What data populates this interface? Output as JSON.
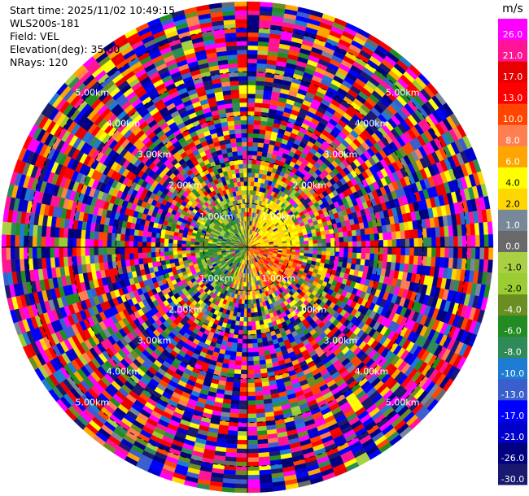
{
  "header": {
    "start_time": "Start time: 2025/11/02 10:49:15",
    "instrument": "WLS200s-181",
    "field": "Field: VEL",
    "elevation": "Elevation(deg): 35.00",
    "nrays": "NRays: 120"
  },
  "chart_data": {
    "type": "heatmap",
    "projection": "polar-ppi",
    "field": "VEL",
    "units": "m/s",
    "n_rays": 120,
    "elevation_deg": 35.0,
    "range_rings_km": [
      1.0,
      2.0,
      3.0,
      4.0,
      5.0
    ],
    "ring_labels": {
      "1": "1.00km",
      "2": "2.00km",
      "3": "3.00km",
      "4": "4.00km",
      "5": "5.00km"
    },
    "ring_label_azimuths_deg": [
      45,
      135,
      225,
      315
    ],
    "max_range_km": 5.6,
    "colorbar": {
      "unit_label": "m/s",
      "boundaries": [
        -30.0,
        -26.0,
        -21.0,
        -17.0,
        -13.0,
        -10.0,
        -8.0,
        -6.0,
        -4.0,
        -2.0,
        -1.0,
        0.0,
        1.0,
        2.0,
        4.0,
        6.0,
        8.0,
        10.0,
        13.0,
        17.0,
        21.0,
        26.0,
        30.0
      ],
      "tick_labels": [
        "-30.0",
        "-26.0",
        "-21.0",
        "-17.0",
        "-13.0",
        "-10.0",
        "-8.0",
        "-6.0",
        "-4.0",
        "-2.0",
        "-1.0",
        "0.0",
        "1.0",
        "2.0",
        "4.0",
        "6.0",
        "8.0",
        "10.0",
        "13.0",
        "17.0",
        "21.0",
        "26.0"
      ],
      "colors": [
        "#191970",
        "#000080",
        "#0000cd",
        "#0000ff",
        "#3a5fcd",
        "#1e7bd2",
        "#2e8b57",
        "#228b22",
        "#6b8e23",
        "#9acd32",
        "#a9d042",
        "#696969",
        "#778899",
        "#ffd700",
        "#ffff00",
        "#ffa500",
        "#ff7f50",
        "#ff4500",
        "#ff0000",
        "#e60000",
        "#ff1493",
        "#ff00ff"
      ]
    },
    "pattern_description_values": {
      "near_range_east_dominant": "0.0 to 17.0",
      "near_range_north_east_dominant": "2.0 to 4.0",
      "near_range_west_dominant": "-8.0 to 0.0",
      "far_range": "noise across full scale"
    }
  }
}
